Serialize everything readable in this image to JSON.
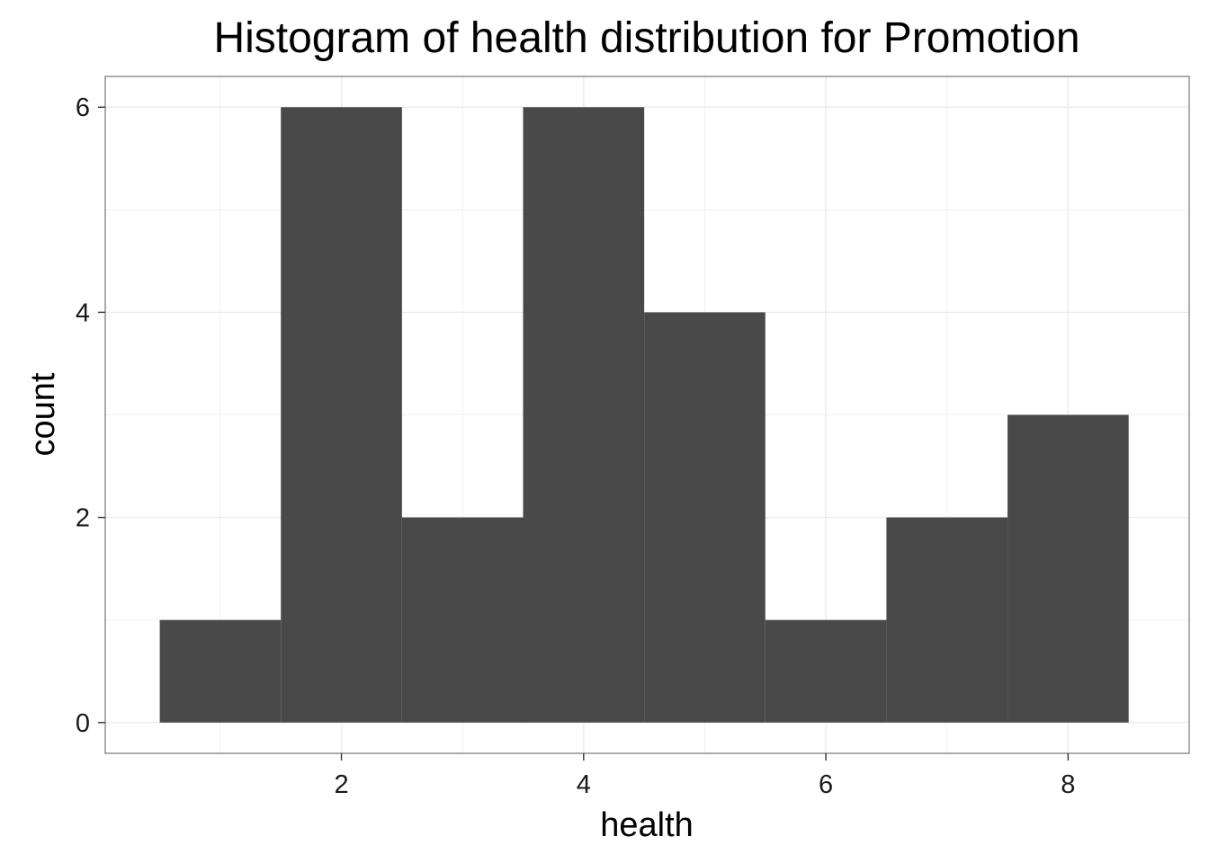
{
  "chart_data": {
    "type": "bar",
    "title": "Histogram of health distribution for Promotion",
    "xlabel": "health",
    "ylabel": "count",
    "bins": [
      {
        "x": 1,
        "count": 1
      },
      {
        "x": 2,
        "count": 6
      },
      {
        "x": 3,
        "count": 2
      },
      {
        "x": 4,
        "count": 6
      },
      {
        "x": 5,
        "count": 4
      },
      {
        "x": 6,
        "count": 1
      },
      {
        "x": 7,
        "count": 2
      },
      {
        "x": 8,
        "count": 3
      }
    ],
    "bin_width": 1,
    "xlim": [
      0.05,
      9.0
    ],
    "ylim": [
      -0.3,
      6.3
    ],
    "x_ticks": [
      "2",
      "4",
      "6",
      "8"
    ],
    "y_ticks": [
      "0",
      "2",
      "4",
      "6"
    ],
    "grid": true,
    "colors": {
      "bar": "#494949",
      "grid": "#ebebeb",
      "panel_border": "#7f7f7f",
      "background": "#ffffff"
    }
  }
}
